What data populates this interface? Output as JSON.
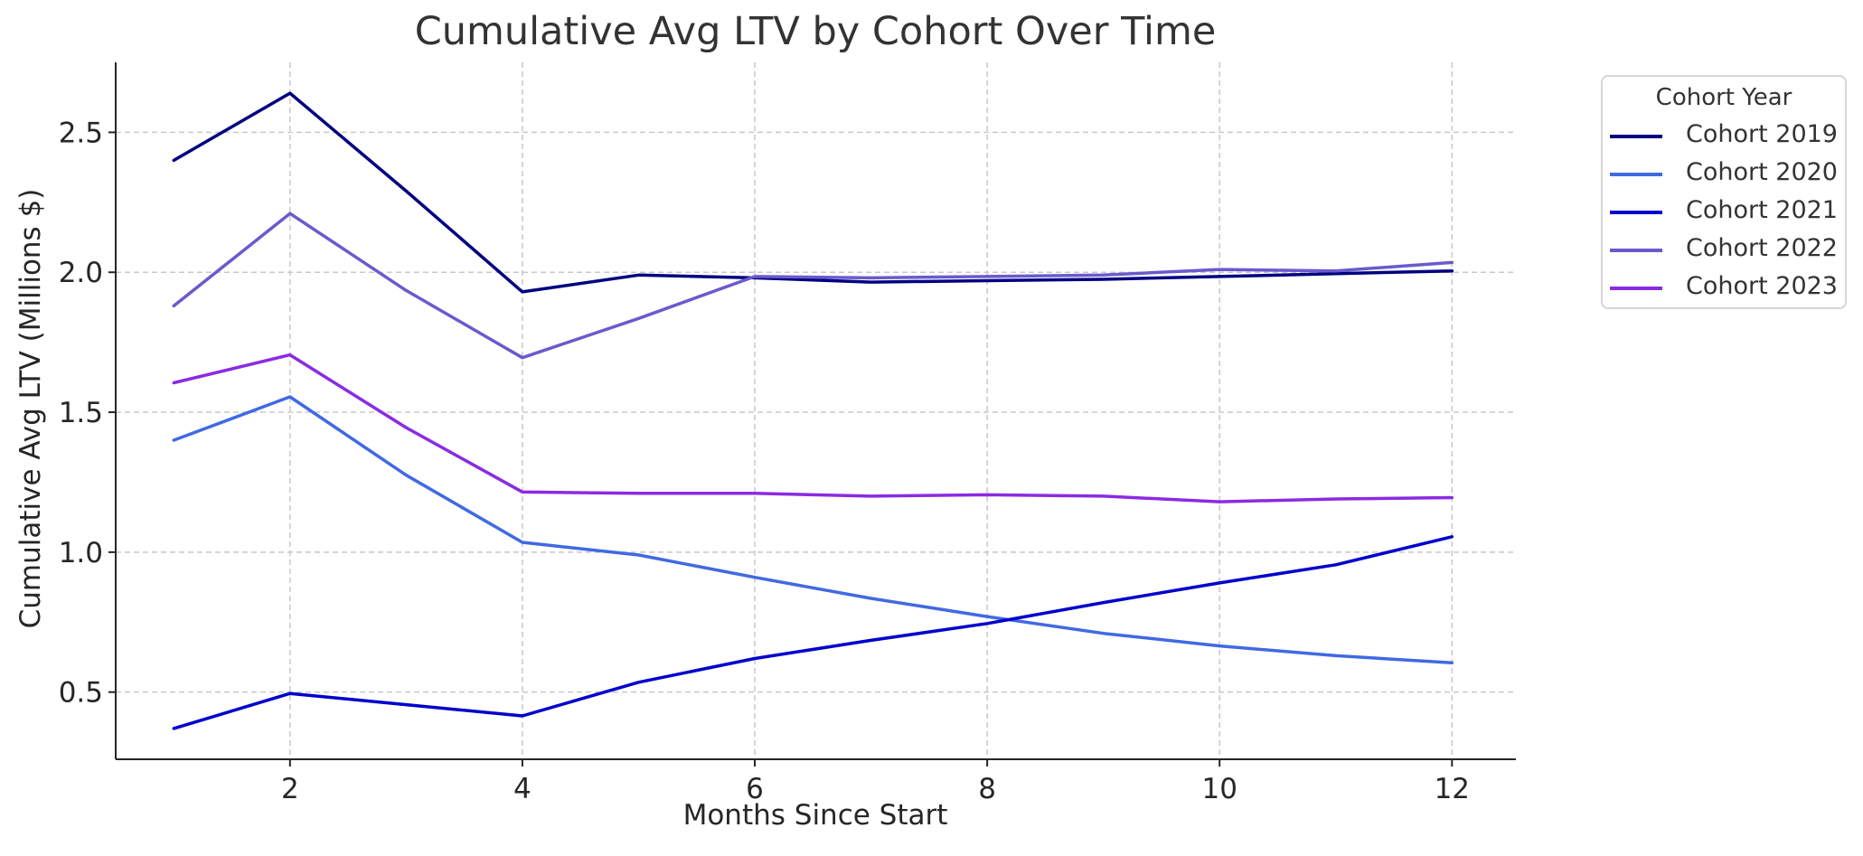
{
  "chart_data": {
    "type": "line",
    "title": "Cumulative Avg LTV by Cohort Over Time",
    "xlabel": "Months Since Start",
    "ylabel": "Cumulative Avg LTV (Millions $)",
    "x": [
      1,
      2,
      3,
      4,
      5,
      6,
      7,
      8,
      9,
      10,
      11,
      12
    ],
    "xlim": [
      0.5,
      12.55
    ],
    "ylim": [
      0.26,
      2.75
    ],
    "xticks": [
      2,
      4,
      6,
      8,
      10,
      12
    ],
    "yticks": [
      0.5,
      1.0,
      1.5,
      2.0,
      2.5
    ],
    "xtick_labels": [
      "2",
      "4",
      "6",
      "8",
      "10",
      "12"
    ],
    "ytick_labels": [
      "0.5",
      "1.0",
      "1.5",
      "2.0",
      "2.5"
    ],
    "grid": true,
    "legend_title": "Cohort Year",
    "legend_position": "outside-top-right",
    "series": [
      {
        "name": "Cohort 2019",
        "color": "#000080",
        "values": [
          2.4,
          2.64,
          2.29,
          1.93,
          1.99,
          1.98,
          1.965,
          1.97,
          1.975,
          1.985,
          1.995,
          2.005
        ]
      },
      {
        "name": "Cohort 2020",
        "color": "#4169e1",
        "values": [
          1.4,
          1.555,
          1.275,
          1.035,
          0.99,
          0.91,
          0.835,
          0.77,
          0.71,
          0.665,
          0.63,
          0.605
        ]
      },
      {
        "name": "Cohort 2021",
        "color": "#0000cd",
        "values": [
          0.37,
          0.495,
          0.455,
          0.415,
          0.535,
          0.62,
          0.685,
          0.745,
          0.82,
          0.89,
          0.955,
          1.055
        ]
      },
      {
        "name": "Cohort 2022",
        "color": "#6a5acd",
        "values": [
          1.88,
          2.21,
          1.935,
          1.695,
          1.835,
          1.985,
          1.98,
          1.985,
          1.99,
          2.01,
          2.005,
          2.035
        ]
      },
      {
        "name": "Cohort 2023",
        "color": "#8a2be2",
        "values": [
          1.605,
          1.705,
          1.445,
          1.215,
          1.21,
          1.21,
          1.2,
          1.205,
          1.2,
          1.18,
          1.19,
          1.195
        ]
      }
    ]
  }
}
